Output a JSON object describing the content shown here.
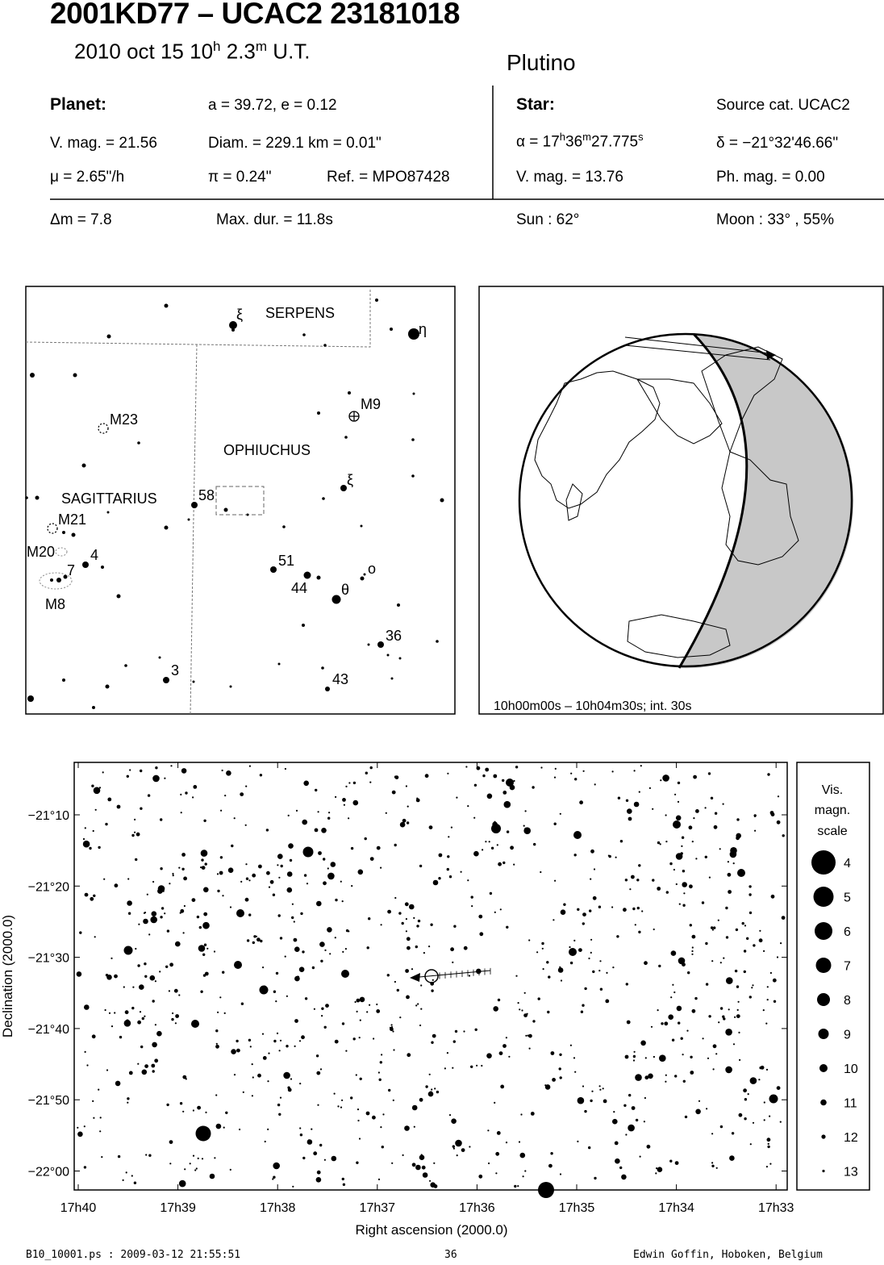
{
  "header": {
    "title": "2001KD77  –  UCAC2 23181018",
    "date": "2010 oct 15  10",
    "hour_unit": "h",
    "minutes": " 2.3",
    "min_unit": "m",
    "tz": " U.T.",
    "object_type": "Plutino"
  },
  "planet": {
    "heading": "Planet:",
    "orbit": "a = 39.72, e = 0.12",
    "vmag": "V. mag. = 21.56",
    "diam": "Diam. = 229.1 km = 0.01\"",
    "mu": "μ =  2.65\"/h",
    "pi": "π =  0.24\"",
    "ref": "Ref. = MPO87428"
  },
  "star": {
    "heading": "Star:",
    "source": "Source cat.  UCAC2",
    "ra_prefix": "α = 17",
    "ra_h": "h",
    "ra_m_val": "36",
    "ra_m": "m",
    "ra_s_val": "27.775",
    "ra_s": "s",
    "dec": "δ = −21°32'46.66\"",
    "vmag": "V. mag. = 13.76",
    "phmag": "Ph. mag. =  0.00"
  },
  "event": {
    "dm": "Δm = 7.8",
    "maxdur": "Max. dur. = 11.8s",
    "sun": "Sun :  62°",
    "moon": "Moon :  33° , 55%"
  },
  "finder": {
    "labels": [
      "SERPENS",
      "OPHIUCHUS",
      "SAGITTARIUS",
      "M23",
      "M9",
      "M21",
      "M20",
      "M8",
      "ξ",
      "η",
      "ξ",
      "58",
      "4",
      "7",
      "51",
      "44",
      "θ",
      "ο",
      "36",
      "3",
      "43"
    ]
  },
  "globe": {
    "caption": "10h00m00s – 10h04m30s; int. 30s"
  },
  "chart_data": {
    "type": "scatter",
    "title": "",
    "xlabel": "Right ascension (2000.0)",
    "ylabel": "Declination (2000.0)",
    "x_ticks": [
      "17h40",
      "17h39",
      "17h38",
      "17h37",
      "17h36",
      "17h35",
      "17h34",
      "17h33"
    ],
    "y_ticks": [
      "−21°10",
      "−21°20",
      "−21°30",
      "−21°40",
      "−21°50",
      "−22°00"
    ],
    "target_star": {
      "ra": "17h36m27.775s",
      "dec": "−21°32'46.66\""
    },
    "legend_title": [
      "Vis.",
      "magn.",
      "scale"
    ],
    "legend_mags": [
      "4",
      "5",
      "6",
      "7",
      "8",
      "9",
      "10",
      "11",
      "12",
      "13"
    ]
  },
  "footer": {
    "file": "B10_10001.ps : 2009-03-12 21:55:51",
    "page": "36",
    "author": "Edwin Goffin, Hoboken, Belgium"
  }
}
